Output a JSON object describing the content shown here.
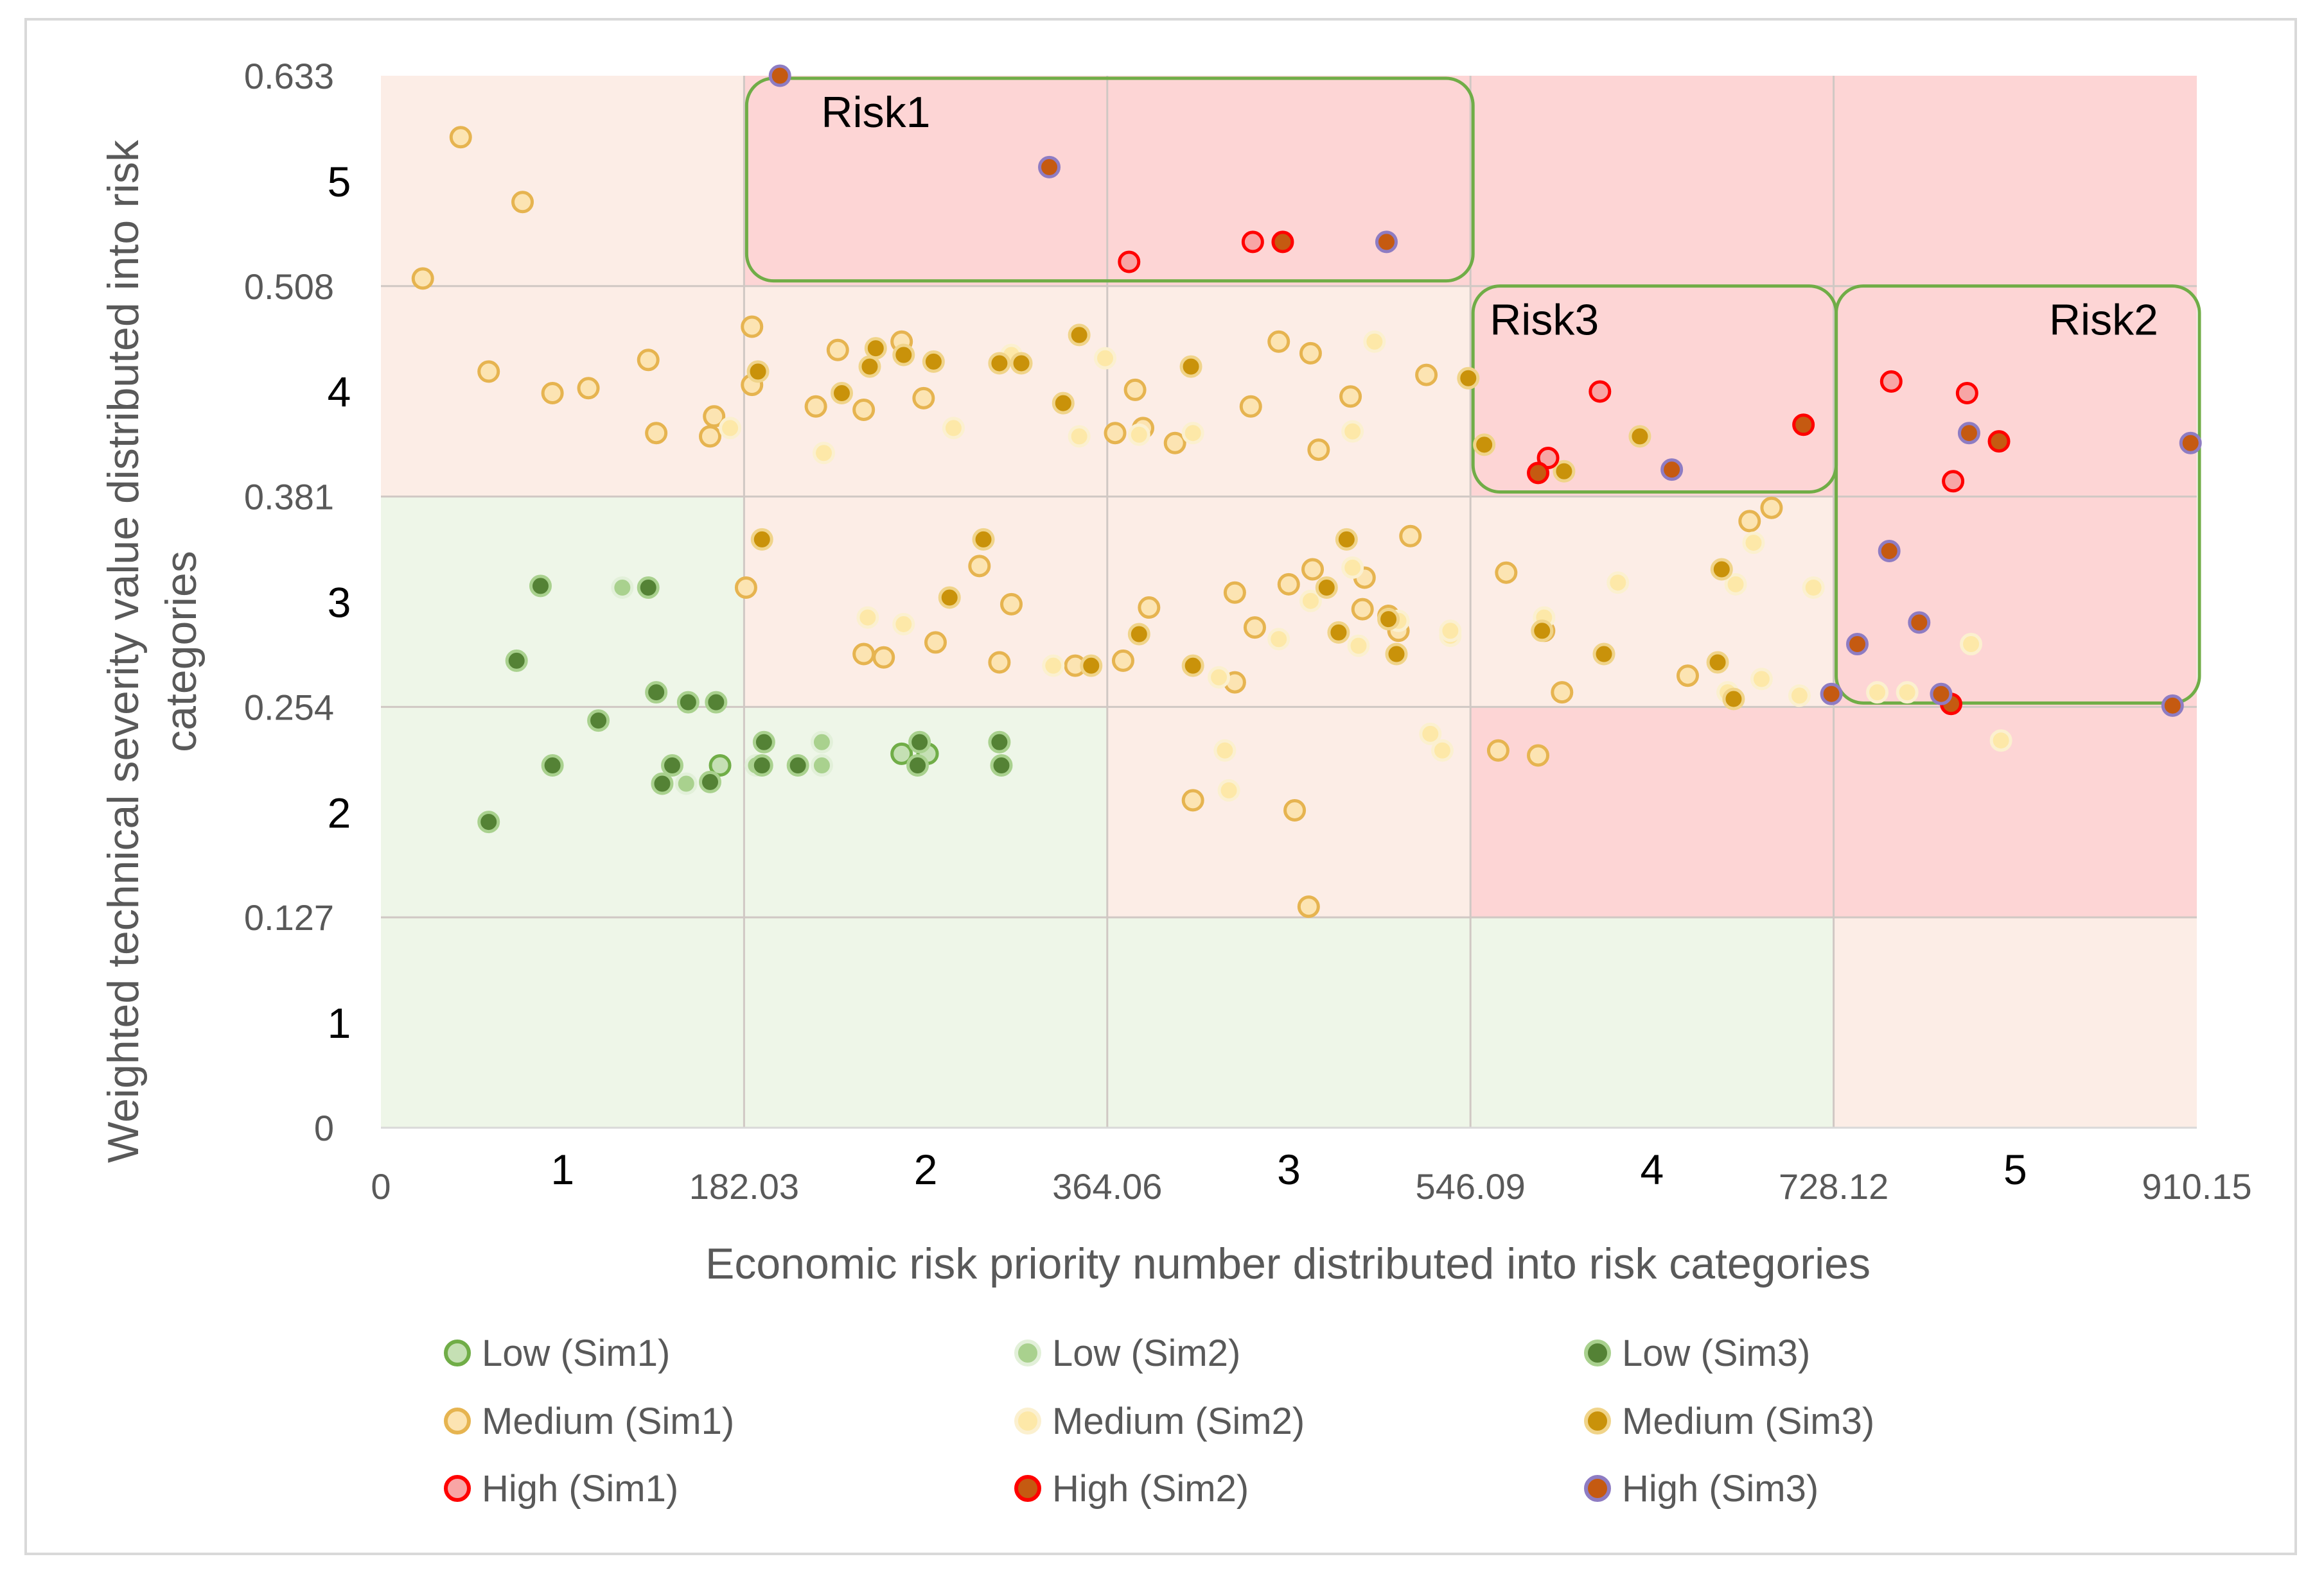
{
  "chart_data": {
    "type": "scatter",
    "title": "",
    "xlabel": "Economic risk priority number distributed into risk categories",
    "ylabel_line1": "Weighted technical severity value distributed into risk",
    "ylabel_line2": "categories",
    "xlim": [
      0,
      910.15
    ],
    "ylim": [
      0,
      0.633
    ],
    "x_ticks": [
      "0",
      "182.03",
      "364.06",
      "546.09",
      "728.12",
      "910.15"
    ],
    "y_ticks": [
      "0",
      "0.127",
      "0.254",
      "0.381",
      "0.508",
      "0.633"
    ],
    "x_categories": [
      "1",
      "2",
      "3",
      "4",
      "5"
    ],
    "y_categories": [
      "1",
      "2",
      "3",
      "4",
      "5"
    ],
    "zone_colors": {
      "low": "#eef6e8",
      "medium": "#fcede6",
      "high": "#fdd5d5"
    },
    "zones": [
      [
        "low",
        "low",
        "low",
        "low",
        "medium"
      ],
      [
        "low",
        "low",
        "medium",
        "high",
        "high"
      ],
      [
        "low",
        "medium",
        "medium",
        "medium",
        "high"
      ],
      [
        "medium",
        "medium",
        "medium",
        "high",
        "high"
      ],
      [
        "medium",
        "high",
        "high",
        "high",
        "high"
      ]
    ],
    "risk_groups": [
      {
        "label": "Risk1",
        "x": [
          182.03,
          546.09
        ],
        "y": [
          0.508,
          0.633
        ]
      },
      {
        "label": "Risk3",
        "x": [
          546.09,
          728.12
        ],
        "y": [
          0.381,
          0.508
        ]
      },
      {
        "label": "Risk2",
        "x": [
          728.12,
          910.15
        ],
        "y": [
          0.254,
          0.508
        ]
      }
    ],
    "series": [
      {
        "name": "Low (Sim1)",
        "fill": "#c5e0b4",
        "stroke": "#70ad47",
        "points": [
          [
            170,
            0.218
          ],
          [
            261,
            0.225
          ],
          [
            274,
            0.225
          ]
        ]
      },
      {
        "name": "Low (Sim2)",
        "fill": "#a9d18e",
        "stroke": "#e2f0d9",
        "points": [
          [
            121,
            0.325
          ],
          [
            153,
            0.207
          ],
          [
            188,
            0.218
          ],
          [
            221,
            0.232
          ],
          [
            221,
            0.218
          ]
        ]
      },
      {
        "name": "Low (Sim3)",
        "fill": "#548235",
        "stroke": "#a9d18e",
        "points": [
          [
            54,
            0.184
          ],
          [
            80,
            0.326
          ],
          [
            68,
            0.281
          ],
          [
            86,
            0.218
          ],
          [
            109,
            0.245
          ],
          [
            134,
            0.325
          ],
          [
            138,
            0.262
          ],
          [
            141,
            0.207
          ],
          [
            146,
            0.218
          ],
          [
            154,
            0.256
          ],
          [
            165,
            0.208
          ],
          [
            168,
            0.256
          ],
          [
            192,
            0.232
          ],
          [
            270,
            0.232
          ],
          [
            269,
            0.218
          ],
          [
            310,
            0.232
          ],
          [
            311,
            0.218
          ],
          [
            191,
            0.218
          ],
          [
            209,
            0.218
          ]
        ]
      },
      {
        "name": "Medium (Sim1)",
        "fill": "#fce4b2",
        "stroke": "#e6b450",
        "points": [
          [
            21,
            0.511
          ],
          [
            40,
            0.596
          ],
          [
            71,
            0.557
          ],
          [
            54,
            0.455
          ],
          [
            86,
            0.442
          ],
          [
            104,
            0.445
          ],
          [
            134,
            0.462
          ],
          [
            138,
            0.418
          ],
          [
            165,
            0.416
          ],
          [
            167,
            0.428
          ],
          [
            186,
            0.482
          ],
          [
            186,
            0.447
          ],
          [
            183,
            0.325
          ],
          [
            218,
            0.434
          ],
          [
            229,
            0.468
          ],
          [
            242,
            0.432
          ],
          [
            261,
            0.473
          ],
          [
            272,
            0.439
          ],
          [
            278,
            0.292
          ],
          [
            242,
            0.285
          ],
          [
            252,
            0.283
          ],
          [
            300,
            0.338
          ],
          [
            310,
            0.28
          ],
          [
            316,
            0.315
          ],
          [
            348,
            0.278
          ],
          [
            372,
            0.281
          ],
          [
            378,
            0.444
          ],
          [
            382,
            0.421
          ],
          [
            385,
            0.313
          ],
          [
            398,
            0.412
          ],
          [
            407,
            0.197
          ],
          [
            428,
            0.268
          ],
          [
            428,
            0.322
          ],
          [
            436,
            0.434
          ],
          [
            438,
            0.301
          ],
          [
            450,
            0.473
          ],
          [
            458,
            0.191
          ],
          [
            455,
            0.327
          ],
          [
            466,
            0.466
          ],
          [
            470,
            0.408
          ],
          [
            465,
            0.133
          ],
          [
            467,
            0.336
          ],
          [
            486,
            0.44
          ],
          [
            492,
            0.312
          ],
          [
            493,
            0.331
          ],
          [
            505,
            0.308
          ],
          [
            510,
            0.299
          ],
          [
            516,
            0.356
          ],
          [
            524,
            0.453
          ],
          [
            560,
            0.227
          ],
          [
            564,
            0.334
          ],
          [
            583,
            0.299
          ],
          [
            592,
            0.262
          ],
          [
            580,
            0.224
          ],
          [
            655,
            0.272
          ],
          [
            686,
            0.365
          ],
          [
            697,
            0.373
          ],
          [
            368,
            0.418
          ]
        ]
      },
      {
        "name": "Medium (Sim2)",
        "fill": "#fde8a8",
        "stroke": "#fbf0d0",
        "points": [
          [
            175,
            0.421
          ],
          [
            222,
            0.406
          ],
          [
            244,
            0.307
          ],
          [
            262,
            0.303
          ],
          [
            287,
            0.421
          ],
          [
            316,
            0.465
          ],
          [
            337,
            0.278
          ],
          [
            350,
            0.416
          ],
          [
            363,
            0.463
          ],
          [
            380,
            0.417
          ],
          [
            407,
            0.418
          ],
          [
            420,
            0.271
          ],
          [
            423,
            0.227
          ],
          [
            425,
            0.203
          ],
          [
            450,
            0.294
          ],
          [
            466,
            0.317
          ],
          [
            487,
            0.419
          ],
          [
            487,
            0.337
          ],
          [
            490,
            0.29
          ],
          [
            498,
            0.473
          ],
          [
            510,
            0.305
          ],
          [
            526,
            0.237
          ],
          [
            532,
            0.227
          ],
          [
            536,
            0.296
          ],
          [
            536,
            0.299
          ],
          [
            583,
            0.307
          ],
          [
            620,
            0.328
          ],
          [
            679,
            0.327
          ],
          [
            688,
            0.352
          ],
          [
            711,
            0.26
          ],
          [
            718,
            0.325
          ],
          [
            750,
            0.262
          ],
          [
            765,
            0.262
          ],
          [
            797,
            0.291
          ],
          [
            812,
            0.233
          ],
          [
            675,
            0.262
          ],
          [
            692,
            0.27
          ]
        ]
      },
      {
        "name": "Medium (Sim3)",
        "fill": "#c9920a",
        "stroke": "#f0d48a",
        "points": [
          [
            189,
            0.455
          ],
          [
            191,
            0.354
          ],
          [
            231,
            0.442
          ],
          [
            245,
            0.458
          ],
          [
            248,
            0.469
          ],
          [
            262,
            0.465
          ],
          [
            277,
            0.461
          ],
          [
            285,
            0.319
          ],
          [
            302,
            0.354
          ],
          [
            310,
            0.46
          ],
          [
            321,
            0.46
          ],
          [
            342,
            0.436
          ],
          [
            350,
            0.477
          ],
          [
            356,
            0.278
          ],
          [
            380,
            0.297
          ],
          [
            407,
            0.278
          ],
          [
            406,
            0.458
          ],
          [
            474,
            0.325
          ],
          [
            480,
            0.298
          ],
          [
            484,
            0.354
          ],
          [
            505,
            0.306
          ],
          [
            509,
            0.285
          ],
          [
            545,
            0.451
          ],
          [
            553,
            0.411
          ],
          [
            582,
            0.299
          ],
          [
            593,
            0.395
          ],
          [
            613,
            0.285
          ],
          [
            631,
            0.416
          ],
          [
            672,
            0.336
          ],
          [
            670,
            0.28
          ],
          [
            678,
            0.258
          ]
        ]
      },
      {
        "name": "High (Sim1)",
        "fill": "#f8a5a5",
        "stroke": "#ff0000",
        "points": [
          [
            375,
            0.521
          ],
          [
            437,
            0.533
          ],
          [
            585,
            0.403
          ],
          [
            611,
            0.443
          ],
          [
            757,
            0.449
          ],
          [
            788,
            0.389
          ],
          [
            795,
            0.442
          ]
        ]
      },
      {
        "name": "High (Sim2)",
        "fill": "#c55a11",
        "stroke": "#ff0000",
        "points": [
          [
            452,
            0.533
          ],
          [
            580,
            0.394
          ],
          [
            713,
            0.423
          ],
          [
            787,
            0.255
          ],
          [
            811,
            0.413
          ]
        ]
      },
      {
        "name": "High (Sim3)",
        "fill": "#c55a11",
        "stroke": "#8e7cc3",
        "points": [
          [
            200,
            0.633
          ],
          [
            335,
            0.578
          ],
          [
            504,
            0.533
          ],
          [
            647,
            0.396
          ],
          [
            727,
            0.261
          ],
          [
            740,
            0.291
          ],
          [
            756,
            0.347
          ],
          [
            771,
            0.304
          ],
          [
            796,
            0.418
          ],
          [
            782,
            0.261
          ],
          [
            898,
            0.254
          ],
          [
            907,
            0.412
          ]
        ]
      }
    ]
  }
}
